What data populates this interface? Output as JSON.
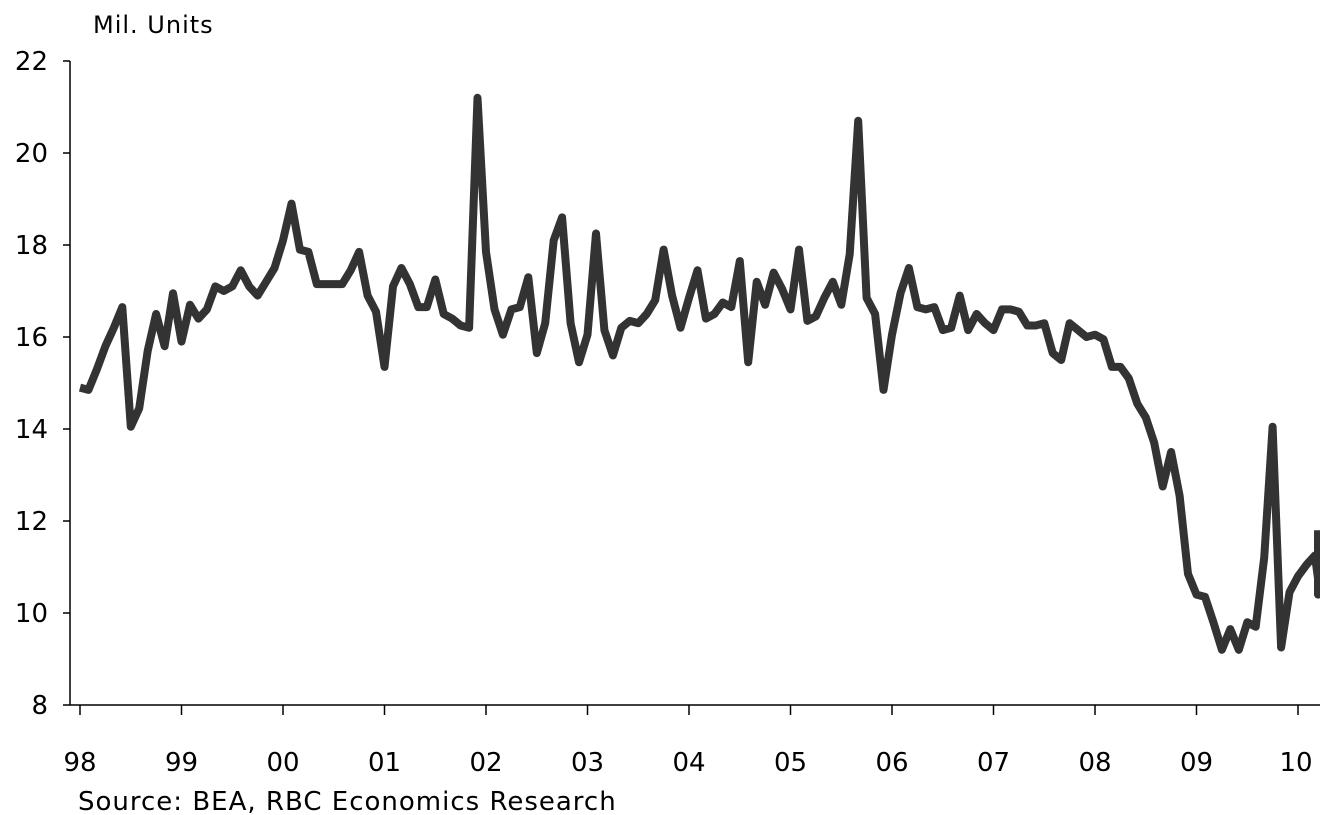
{
  "chart_data": {
    "type": "line",
    "ylabel": "Mil. Units",
    "source": "Source: BEA, RBC Economics Research",
    "ylim": [
      8,
      22
    ],
    "y_ticks": [
      8,
      10,
      12,
      14,
      16,
      18,
      20,
      22
    ],
    "x_tick_labels": [
      "98",
      "99",
      "00",
      "01",
      "02",
      "03",
      "04",
      "05",
      "06",
      "07",
      "08",
      "09",
      "10"
    ],
    "grid": false,
    "colors": {
      "line": "#333333",
      "axis": "#000000"
    },
    "series": [
      {
        "start_year": 1998,
        "frequency": "monthly",
        "values": [
          14.9,
          14.85,
          15.3,
          15.8,
          16.2,
          16.65,
          14.05,
          14.45,
          15.7,
          16.5,
          15.8,
          16.95,
          15.9,
          16.7,
          16.4,
          16.6,
          17.1,
          17.0,
          17.1,
          17.45,
          17.1,
          16.9,
          17.2,
          17.5,
          18.1,
          18.9,
          17.9,
          17.85,
          17.15,
          17.15,
          17.15,
          17.15,
          17.45,
          17.85,
          16.9,
          16.55,
          15.35,
          17.1,
          17.5,
          17.15,
          16.65,
          16.65,
          17.25,
          16.5,
          16.4,
          16.25,
          16.2,
          21.2,
          17.85,
          16.6,
          16.05,
          16.6,
          16.65,
          17.3,
          15.65,
          16.3,
          18.1,
          18.6,
          16.3,
          15.45,
          16.05,
          18.25,
          16.15,
          15.6,
          16.2,
          16.35,
          16.3,
          16.5,
          16.8,
          17.9,
          16.9,
          16.2,
          16.85,
          17.45,
          16.4,
          16.5,
          16.75,
          16.65,
          17.65,
          15.45,
          17.2,
          16.7,
          17.4,
          17.05,
          16.6,
          17.9,
          16.35,
          16.45,
          16.85,
          17.2,
          16.7,
          17.8,
          20.7,
          16.85,
          16.5,
          14.85,
          16.05,
          16.95,
          17.5,
          16.65,
          16.6,
          16.65,
          16.15,
          16.2,
          16.9,
          16.15,
          16.5,
          16.3,
          16.15,
          16.6,
          16.6,
          16.55,
          16.25,
          16.25,
          16.3,
          15.65,
          15.5,
          16.3,
          16.15,
          16.0,
          16.05,
          15.95,
          15.35,
          15.35,
          15.1,
          14.55,
          14.25,
          13.7,
          12.75,
          13.5,
          12.55,
          10.85,
          10.4,
          10.35,
          9.8,
          9.2,
          9.65,
          9.2,
          9.8,
          9.7,
          11.2,
          14.05,
          9.25,
          10.45,
          10.8,
          11.05,
          11.25,
          10.75,
          10.4,
          11.8
        ]
      }
    ]
  }
}
